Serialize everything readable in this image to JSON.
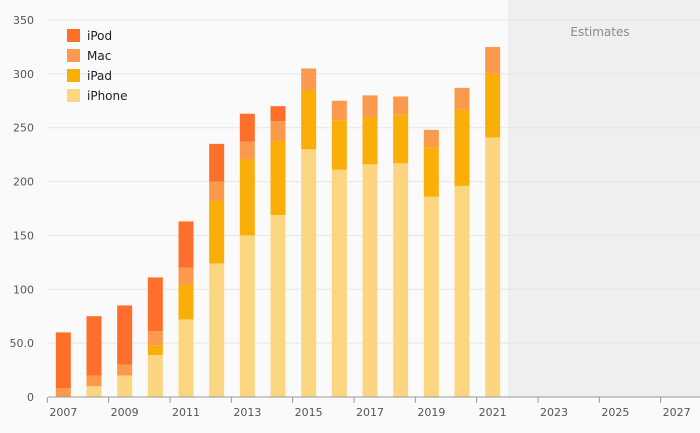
{
  "chart_data": {
    "type": "bar",
    "stacked": true,
    "title": "",
    "xlabel": "",
    "ylabel": "",
    "ylim": [
      0,
      350
    ],
    "xlim": [
      2006.5,
      2027.5
    ],
    "y_ticks": [
      0,
      50,
      100,
      150,
      200,
      250,
      300,
      350
    ],
    "y_tick_labels": [
      "0",
      "50.0",
      "100",
      "150",
      "200",
      "250",
      "300",
      "350"
    ],
    "x_ticks": [
      2007,
      2009,
      2011,
      2013,
      2015,
      2017,
      2019,
      2021,
      2023,
      2025,
      2027
    ],
    "x_tick_labels": [
      "2007",
      "2009",
      "2011",
      "2013",
      "2015",
      "2017",
      "2019",
      "2021",
      "2023",
      "2025",
      "2027"
    ],
    "categories": [
      2007,
      2008,
      2009,
      2010,
      2011,
      2012,
      2013,
      2014,
      2015,
      2016,
      2017,
      2018,
      2019,
      2020,
      2021
    ],
    "series": [
      {
        "name": "iPhone",
        "color": "#fcd581",
        "values": [
          0,
          10,
          20,
          39,
          72,
          124,
          150,
          169,
          230,
          211,
          216,
          217,
          186,
          196,
          241
        ]
      },
      {
        "name": "iPad",
        "color": "#f9ae08",
        "values": [
          0,
          0,
          0,
          9,
          32,
          58,
          71,
          69,
          55,
          46,
          44,
          45,
          46,
          71,
          59
        ]
      },
      {
        "name": "Mac",
        "color": "#fb9a4c",
        "values": [
          8,
          10,
          10,
          13,
          16,
          18,
          16,
          18,
          20,
          18,
          20,
          17,
          16,
          20,
          25
        ]
      },
      {
        "name": "iPod",
        "color": "#fd6f2b",
        "values": [
          52,
          55,
          55,
          50,
          43,
          35,
          26,
          14,
          0,
          0,
          0,
          0,
          0,
          0,
          0
        ]
      }
    ],
    "legend_order": [
      "iPod",
      "Mac",
      "iPad",
      "iPhone"
    ],
    "legend_position": "top-left",
    "grid": true,
    "estimates_band": {
      "label": "Estimates",
      "from": 2021.5,
      "to": 2027.5,
      "color": "#efefef"
    }
  }
}
